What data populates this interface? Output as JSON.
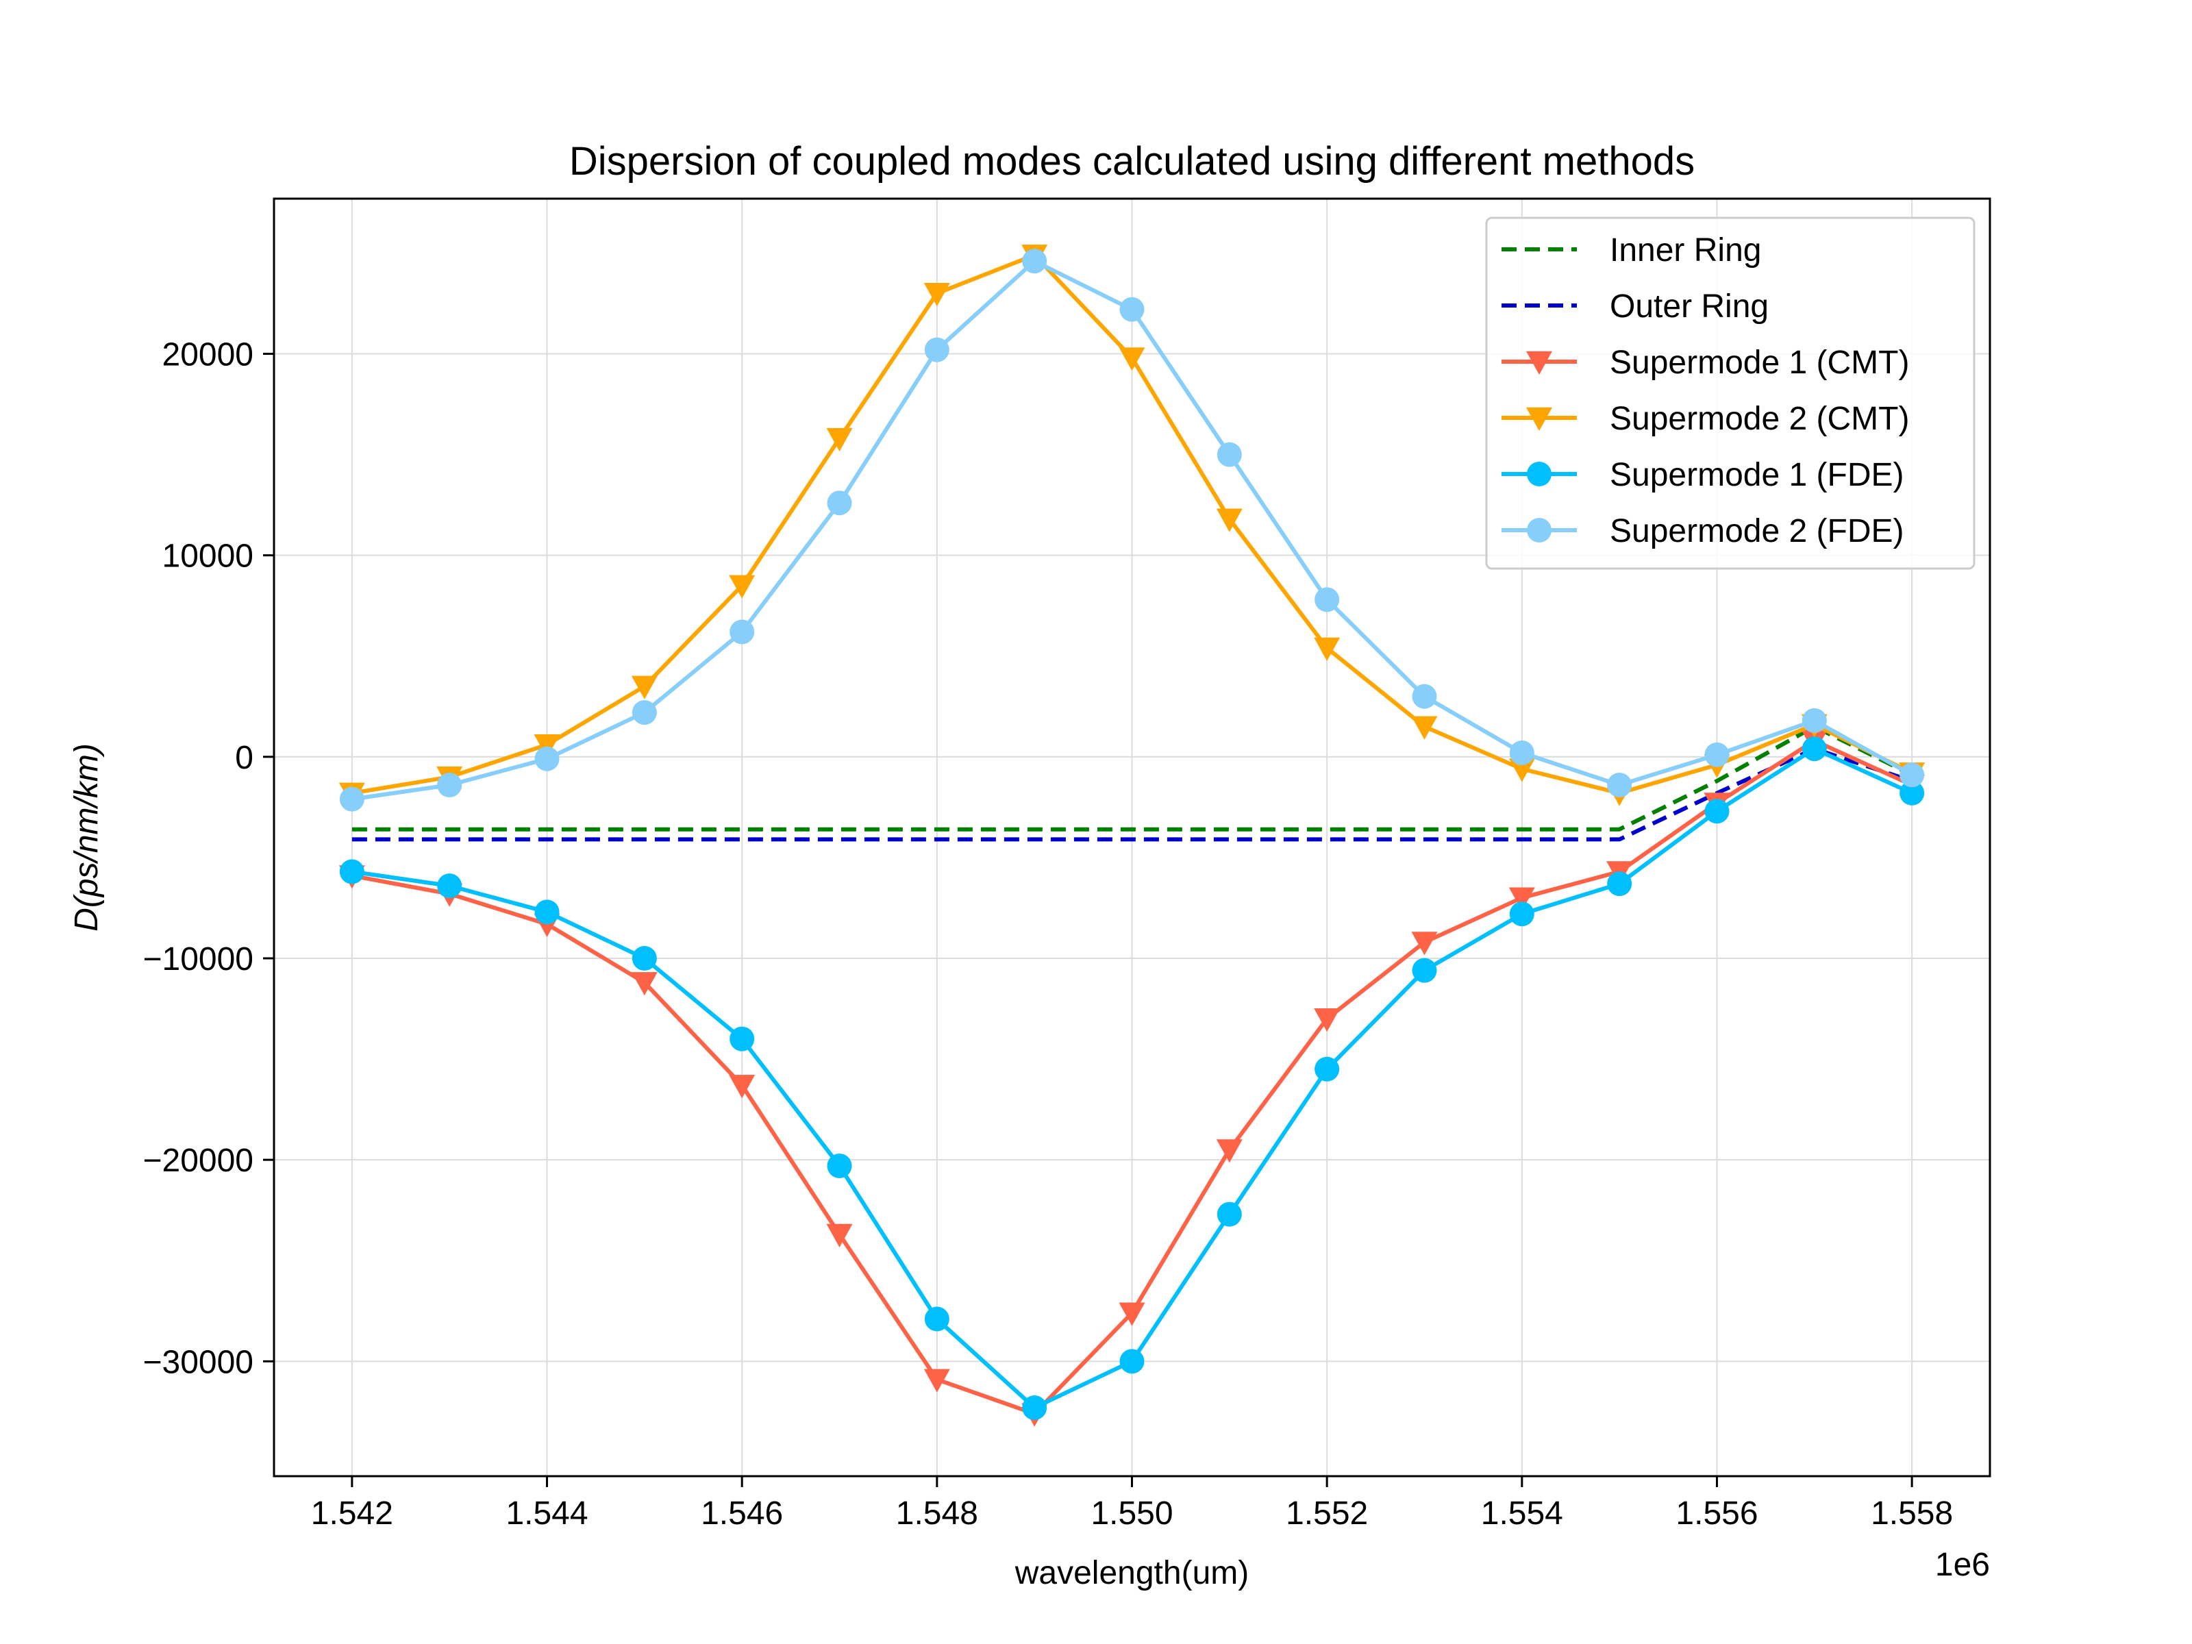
{
  "chart_data": {
    "type": "line",
    "title": "Dispersion of coupled modes calculated using different methods",
    "xlabel": "wavelength(um)",
    "ylabel": "D(ps/nm/km)",
    "x_offset_label": "1e6",
    "xlim": [
      1.5412,
      1.5588
    ],
    "ylim": [
      -35700,
      27700
    ],
    "xticks": [
      1.542,
      1.544,
      1.546,
      1.548,
      1.55,
      1.552,
      1.554,
      1.556,
      1.558
    ],
    "xtick_labels": [
      "1.542",
      "1.544",
      "1.546",
      "1.548",
      "1.550",
      "1.552",
      "1.554",
      "1.556",
      "1.558"
    ],
    "yticks": [
      -30000,
      -20000,
      -10000,
      0,
      10000,
      20000
    ],
    "ytick_labels": [
      "−30000",
      "−20000",
      "−10000",
      "0",
      "10000",
      "20000"
    ],
    "grid": true,
    "legend_position": "top-right",
    "x": [
      1.542,
      1.543,
      1.544,
      1.545,
      1.546,
      1.547,
      1.548,
      1.549,
      1.55,
      1.551,
      1.552,
      1.553,
      1.554,
      1.555,
      1.556,
      1.557,
      1.558
    ],
    "series": [
      {
        "name": "Inner Ring",
        "color": "#008000",
        "style": "dashed",
        "marker": "none",
        "values": [
          -3600,
          -3600,
          -3600,
          -3600,
          -3600,
          -3600,
          -3600,
          -3600,
          -3600,
          -3600,
          -3600,
          -3600,
          -3600,
          -3600,
          -1200,
          1500,
          -900
        ]
      },
      {
        "name": "Outer Ring",
        "color": "#0000cd",
        "style": "dashed",
        "marker": "none",
        "values": [
          -4100,
          -4100,
          -4100,
          -4100,
          -4100,
          -4100,
          -4100,
          -4100,
          -4100,
          -4100,
          -4100,
          -4100,
          -4100,
          -4100,
          -1800,
          400,
          -1200
        ]
      },
      {
        "name": "Supermode 1 (CMT)",
        "color": "#ff6347",
        "style": "solid",
        "marker": "triangle-down",
        "values": [
          -5900,
          -6800,
          -8300,
          -11200,
          -16300,
          -23700,
          -30900,
          -32600,
          -27600,
          -19500,
          -13000,
          -9200,
          -7000,
          -5700,
          -2300,
          800,
          -1400
        ]
      },
      {
        "name": "Supermode 2 (CMT)",
        "color": "#ffa500",
        "style": "solid",
        "marker": "triangle-down",
        "values": [
          -1800,
          -1000,
          600,
          3500,
          8500,
          15800,
          23000,
          24900,
          19800,
          11800,
          5400,
          1500,
          -600,
          -1800,
          -400,
          1600,
          -800
        ]
      },
      {
        "name": "Supermode 1 (FDE)",
        "color": "#00bfff",
        "style": "solid",
        "marker": "circle",
        "values": [
          -5700,
          -6400,
          -7700,
          -10000,
          -14000,
          -20300,
          -27900,
          -32300,
          -30000,
          -22700,
          -15500,
          -10600,
          -7800,
          -6300,
          -2700,
          400,
          -1800
        ]
      },
      {
        "name": "Supermode 2 (FDE)",
        "color": "#87cefa",
        "style": "solid",
        "marker": "circle",
        "values": [
          -2100,
          -1400,
          -100,
          2200,
          6200,
          12600,
          20200,
          24600,
          22200,
          15000,
          7800,
          3000,
          200,
          -1400,
          100,
          1800,
          -900
        ]
      }
    ]
  }
}
